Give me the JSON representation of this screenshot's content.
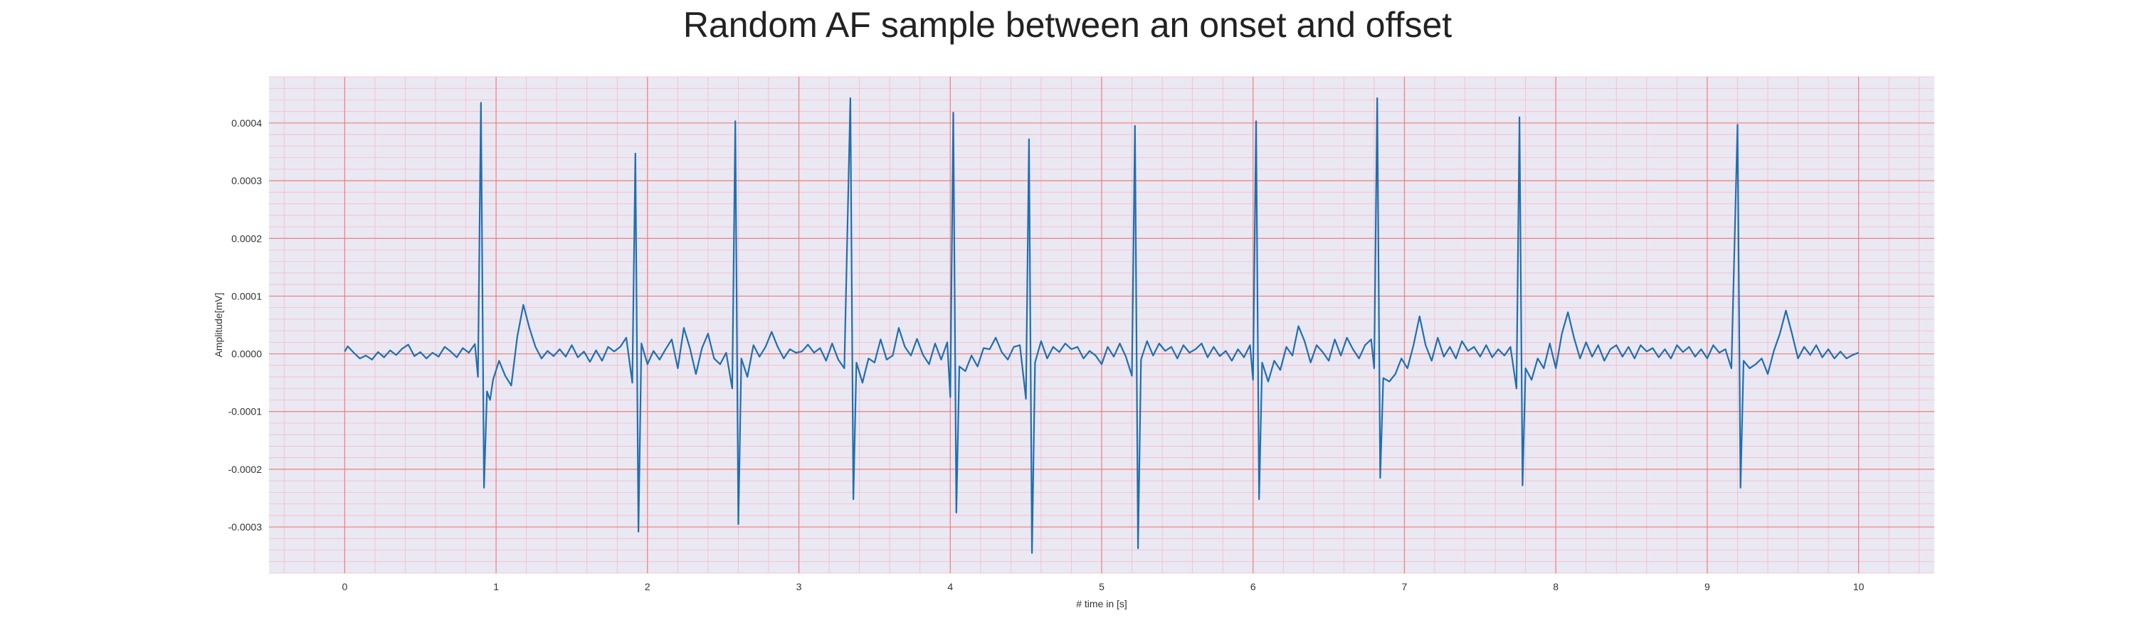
{
  "colors": {
    "background": "#eae8f3",
    "major_grid": "#ef7d7d",
    "minor_grid": "#f4bcc6",
    "line": "#1f6fb0"
  },
  "chart_data": {
    "type": "line",
    "title": "Random AF sample between an onset and offset",
    "xlabel": "# time in [s]",
    "ylabel": "Amplitude[mV]",
    "xlim": [
      -0.5,
      10.5
    ],
    "ylim": [
      -0.00038,
      0.00048
    ],
    "xticks": [
      "0",
      "1",
      "2",
      "3",
      "4",
      "5",
      "6",
      "7",
      "8",
      "9",
      "10"
    ],
    "yticks": [
      "-0.0003",
      "-0.0002",
      "-0.0001",
      "0.0000",
      "0.0001",
      "0.0002",
      "0.0003",
      "0.0004"
    ],
    "grid": true,
    "minor_grid": true,
    "series": [
      {
        "points": [
          [
            0.0,
            4e-06
          ],
          [
            0.02,
            1.3e-05
          ],
          [
            0.06,
            2e-06
          ],
          [
            0.1,
            -8e-06
          ],
          [
            0.14,
            -3e-06
          ],
          [
            0.18,
            -1e-05
          ],
          [
            0.22,
            3e-06
          ],
          [
            0.26,
            -6e-06
          ],
          [
            0.3,
            6e-06
          ],
          [
            0.34,
            -2e-06
          ],
          [
            0.38,
            9e-06
          ],
          [
            0.42,
            1.6e-05
          ],
          [
            0.46,
            -4e-06
          ],
          [
            0.5,
            3e-06
          ],
          [
            0.54,
            -8e-06
          ],
          [
            0.58,
            2e-06
          ],
          [
            0.62,
            -5e-06
          ],
          [
            0.66,
            1.2e-05
          ],
          [
            0.7,
            4e-06
          ],
          [
            0.74,
            -6e-06
          ],
          [
            0.78,
            1e-05
          ],
          [
            0.82,
            2e-06
          ],
          [
            0.86,
            1.7e-05
          ],
          [
            0.88,
            -4e-05
          ],
          [
            0.9,
            0.000435
          ],
          [
            0.92,
            -0.000232
          ],
          [
            0.94,
            -6.5e-05
          ],
          [
            0.96,
            -8e-05
          ],
          [
            0.98,
            -4.5e-05
          ],
          [
            1.02,
            -1.2e-05
          ],
          [
            1.06,
            -3.8e-05
          ],
          [
            1.1,
            -5.5e-05
          ],
          [
            1.14,
            3e-05
          ],
          [
            1.18,
            8.5e-05
          ],
          [
            1.22,
            4.5e-05
          ],
          [
            1.26,
            1.2e-05
          ],
          [
            1.3,
            -8e-06
          ],
          [
            1.34,
            5e-06
          ],
          [
            1.38,
            -4e-06
          ],
          [
            1.42,
            8e-06
          ],
          [
            1.46,
            -5e-06
          ],
          [
            1.5,
            1.5e-05
          ],
          [
            1.54,
            -6e-06
          ],
          [
            1.58,
            4e-06
          ],
          [
            1.62,
            -1.4e-05
          ],
          [
            1.66,
            6e-06
          ],
          [
            1.7,
            -1.2e-05
          ],
          [
            1.74,
            1.2e-05
          ],
          [
            1.78,
            4e-06
          ],
          [
            1.82,
            1.2e-05
          ],
          [
            1.86,
            2.8e-05
          ],
          [
            1.9,
            -5e-05
          ],
          [
            1.92,
            0.000347
          ],
          [
            1.94,
            -0.000308
          ],
          [
            1.96,
            1.8e-05
          ],
          [
            2.0,
            -1.8e-05
          ],
          [
            2.04,
            5e-06
          ],
          [
            2.08,
            -1e-05
          ],
          [
            2.12,
            8e-06
          ],
          [
            2.16,
            2.5e-05
          ],
          [
            2.2,
            -2.5e-05
          ],
          [
            2.24,
            4.5e-05
          ],
          [
            2.28,
            1e-05
          ],
          [
            2.32,
            -3.5e-05
          ],
          [
            2.36,
            1e-05
          ],
          [
            2.4,
            3.5e-05
          ],
          [
            2.44,
            -8e-06
          ],
          [
            2.48,
            -1.8e-05
          ],
          [
            2.52,
            2e-06
          ],
          [
            2.56,
            -6e-05
          ],
          [
            2.58,
            0.000403
          ],
          [
            2.6,
            -0.000295
          ],
          [
            2.62,
            -8e-06
          ],
          [
            2.66,
            -4e-05
          ],
          [
            2.7,
            1.5e-05
          ],
          [
            2.74,
            -5e-06
          ],
          [
            2.78,
            1.2e-05
          ],
          [
            2.82,
            3.8e-05
          ],
          [
            2.86,
            1.2e-05
          ],
          [
            2.9,
            -8e-06
          ],
          [
            2.94,
            8e-06
          ],
          [
            2.98,
            2e-06
          ],
          [
            3.02,
            4e-06
          ],
          [
            3.06,
            1.6e-05
          ],
          [
            3.1,
            2e-06
          ],
          [
            3.14,
            1e-05
          ],
          [
            3.18,
            -1.2e-05
          ],
          [
            3.22,
            1.8e-05
          ],
          [
            3.26,
            -1e-05
          ],
          [
            3.3,
            -2.5e-05
          ],
          [
            3.34,
            0.000443
          ],
          [
            3.36,
            -0.000252
          ],
          [
            3.38,
            -1.5e-05
          ],
          [
            3.42,
            -5e-05
          ],
          [
            3.46,
            -8e-06
          ],
          [
            3.5,
            -1.5e-05
          ],
          [
            3.54,
            2.5e-05
          ],
          [
            3.58,
            -1e-05
          ],
          [
            3.62,
            -3e-06
          ],
          [
            3.66,
            4.5e-05
          ],
          [
            3.7,
            1.2e-05
          ],
          [
            3.74,
            -3e-06
          ],
          [
            3.78,
            2.6e-05
          ],
          [
            3.82,
            -2e-06
          ],
          [
            3.86,
            -1.8e-05
          ],
          [
            3.9,
            1.8e-05
          ],
          [
            3.94,
            -1e-05
          ],
          [
            3.98,
            2e-05
          ],
          [
            4.0,
            -7.5e-05
          ],
          [
            4.02,
            0.000418
          ],
          [
            4.04,
            -0.000275
          ],
          [
            4.06,
            -2.2e-05
          ],
          [
            4.1,
            -3e-05
          ],
          [
            4.14,
            -3e-06
          ],
          [
            4.18,
            -2.2e-05
          ],
          [
            4.22,
            1e-05
          ],
          [
            4.26,
            8e-06
          ],
          [
            4.3,
            2.8e-05
          ],
          [
            4.34,
            3e-06
          ],
          [
            4.38,
            -1e-05
          ],
          [
            4.42,
            1.2e-05
          ],
          [
            4.46,
            1.5e-05
          ],
          [
            4.5,
            -7.8e-05
          ],
          [
            4.52,
            0.000372
          ],
          [
            4.54,
            -0.000345
          ],
          [
            4.56,
            -1.5e-05
          ],
          [
            4.6,
            2.2e-05
          ],
          [
            4.64,
            -8e-06
          ],
          [
            4.68,
            1.2e-05
          ],
          [
            4.72,
            3e-06
          ],
          [
            4.76,
            1.8e-05
          ],
          [
            4.8,
            8e-06
          ],
          [
            4.84,
            1.2e-05
          ],
          [
            4.88,
            -8e-06
          ],
          [
            4.92,
            5e-06
          ],
          [
            4.96,
            -3e-06
          ],
          [
            5.0,
            -1.8e-05
          ],
          [
            5.04,
            1.2e-05
          ],
          [
            5.08,
            -5e-06
          ],
          [
            5.12,
            1.8e-05
          ],
          [
            5.16,
            -5e-06
          ],
          [
            5.2,
            -3.8e-05
          ],
          [
            5.22,
            0.000395
          ],
          [
            5.24,
            -0.000337
          ],
          [
            5.26,
            -1e-05
          ],
          [
            5.3,
            2.2e-05
          ],
          [
            5.34,
            -3e-06
          ],
          [
            5.38,
            1.8e-05
          ],
          [
            5.42,
            5e-06
          ],
          [
            5.46,
            1.2e-05
          ],
          [
            5.5,
            -8e-06
          ],
          [
            5.54,
            1.5e-05
          ],
          [
            5.58,
            2e-06
          ],
          [
            5.62,
            8e-06
          ],
          [
            5.66,
            1.8e-05
          ],
          [
            5.7,
            -6e-06
          ],
          [
            5.74,
            1.2e-05
          ],
          [
            5.78,
            -4e-06
          ],
          [
            5.82,
            5e-06
          ],
          [
            5.86,
            -1.2e-05
          ],
          [
            5.9,
            8e-06
          ],
          [
            5.94,
            -6e-06
          ],
          [
            5.98,
            1.5e-05
          ],
          [
            6.0,
            -4.5e-05
          ],
          [
            6.02,
            0.000403
          ],
          [
            6.04,
            -0.000252
          ],
          [
            6.06,
            -1.5e-05
          ],
          [
            6.1,
            -4.8e-05
          ],
          [
            6.14,
            -1.2e-05
          ],
          [
            6.18,
            -2.8e-05
          ],
          [
            6.22,
            1.2e-05
          ],
          [
            6.26,
            -3e-06
          ],
          [
            6.3,
            4.8e-05
          ],
          [
            6.34,
            2.2e-05
          ],
          [
            6.38,
            -1.5e-05
          ],
          [
            6.42,
            1.5e-05
          ],
          [
            6.46,
            3e-06
          ],
          [
            6.5,
            -1.2e-05
          ],
          [
            6.54,
            2.5e-05
          ],
          [
            6.58,
            -3e-06
          ],
          [
            6.62,
            2.8e-05
          ],
          [
            6.66,
            8e-06
          ],
          [
            6.7,
            -8e-06
          ],
          [
            6.74,
            1.5e-05
          ],
          [
            6.78,
            2.5e-05
          ],
          [
            6.8,
            -2.5e-05
          ],
          [
            6.82,
            0.000443
          ],
          [
            6.84,
            -0.000215
          ],
          [
            6.86,
            -4.2e-05
          ],
          [
            6.9,
            -4.8e-05
          ],
          [
            6.94,
            -3.5e-05
          ],
          [
            6.98,
            -8e-06
          ],
          [
            7.02,
            -2.5e-05
          ],
          [
            7.06,
            1.5e-05
          ],
          [
            7.1,
            6.5e-05
          ],
          [
            7.14,
            1.5e-05
          ],
          [
            7.18,
            -1.2e-05
          ],
          [
            7.22,
            2.8e-05
          ],
          [
            7.26,
            -5e-06
          ],
          [
            7.3,
            1.2e-05
          ],
          [
            7.34,
            -8e-06
          ],
          [
            7.38,
            2.2e-05
          ],
          [
            7.42,
            5e-06
          ],
          [
            7.46,
            1.2e-05
          ],
          [
            7.5,
            -5e-06
          ],
          [
            7.54,
            1.5e-05
          ],
          [
            7.58,
            -6e-06
          ],
          [
            7.62,
            8e-06
          ],
          [
            7.66,
            -3e-06
          ],
          [
            7.7,
            1.2e-05
          ],
          [
            7.74,
            -6e-05
          ],
          [
            7.76,
            0.00041
          ],
          [
            7.78,
            -0.000228
          ],
          [
            7.8,
            -2.5e-05
          ],
          [
            7.84,
            -4.5e-05
          ],
          [
            7.88,
            -8e-06
          ],
          [
            7.92,
            -2.5e-05
          ],
          [
            7.96,
            1.8e-05
          ],
          [
            8.0,
            -2.5e-05
          ],
          [
            8.04,
            3.5e-05
          ],
          [
            8.08,
            7.2e-05
          ],
          [
            8.12,
            2.8e-05
          ],
          [
            8.16,
            -8e-06
          ],
          [
            8.2,
            2e-05
          ],
          [
            8.24,
            -5e-06
          ],
          [
            8.28,
            1.5e-05
          ],
          [
            8.32,
            -1.2e-05
          ],
          [
            8.36,
            8e-06
          ],
          [
            8.4,
            1.5e-05
          ],
          [
            8.44,
            -5e-06
          ],
          [
            8.48,
            1.2e-05
          ],
          [
            8.52,
            -8e-06
          ],
          [
            8.56,
            1.5e-05
          ],
          [
            8.6,
            4e-06
          ],
          [
            8.64,
            1e-05
          ],
          [
            8.68,
            -6e-06
          ],
          [
            8.72,
            8e-06
          ],
          [
            8.76,
            -8e-06
          ],
          [
            8.8,
            1.5e-05
          ],
          [
            8.84,
            3e-06
          ],
          [
            8.88,
            1.2e-05
          ],
          [
            8.92,
            -5e-06
          ],
          [
            8.96,
            8e-06
          ],
          [
            9.0,
            -8e-06
          ],
          [
            9.04,
            1.5e-05
          ],
          [
            9.08,
            2e-06
          ],
          [
            9.12,
            8e-06
          ],
          [
            9.16,
            -2.5e-05
          ],
          [
            9.2,
            0.000397
          ],
          [
            9.22,
            -0.000232
          ],
          [
            9.24,
            -1.2e-05
          ],
          [
            9.28,
            -2.5e-05
          ],
          [
            9.32,
            -1.8e-05
          ],
          [
            9.36,
            -8e-06
          ],
          [
            9.4,
            -3.5e-05
          ],
          [
            9.44,
            5e-06
          ],
          [
            9.48,
            3.5e-05
          ],
          [
            9.52,
            7.5e-05
          ],
          [
            9.56,
            3.5e-05
          ],
          [
            9.6,
            -8e-06
          ],
          [
            9.64,
            1.2e-05
          ],
          [
            9.68,
            -2e-06
          ],
          [
            9.72,
            1.5e-05
          ],
          [
            9.76,
            -6e-06
          ],
          [
            9.8,
            8e-06
          ],
          [
            9.84,
            -8e-06
          ],
          [
            9.88,
            4e-06
          ],
          [
            9.92,
            -8e-06
          ],
          [
            9.96,
            -2e-06
          ],
          [
            10.0,
            2e-06
          ]
        ]
      }
    ]
  }
}
